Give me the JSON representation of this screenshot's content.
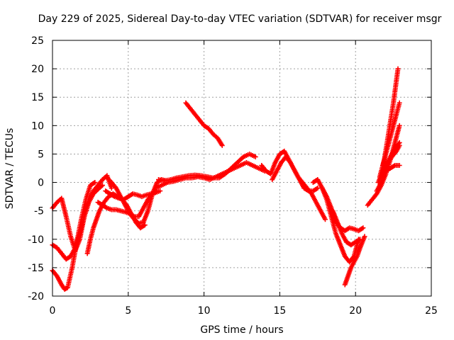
{
  "chart_data": {
    "type": "scatter",
    "title": "Day 229 of 2025, Sidereal Day-to-day VTEC variation (SDTVAR) for receiver msgr",
    "xlabel": "GPS time / hours",
    "ylabel": "SDTVAR / TECUs",
    "xlim": [
      0,
      25
    ],
    "ylim": [
      -20,
      25
    ],
    "xticks": [
      0,
      5,
      10,
      15,
      20,
      25
    ],
    "yticks": [
      -20,
      -15,
      -10,
      -5,
      0,
      5,
      10,
      15,
      20,
      25
    ],
    "grid": true,
    "marker": "plus",
    "color": "#ff0000",
    "series": [
      {
        "x": [
          0.0,
          0.3,
          0.6,
          0.9,
          1.2,
          1.5,
          1.8,
          2.1,
          2.4,
          2.7,
          3.0,
          3.3,
          3.6,
          3.9
        ],
        "y": [
          -4.5,
          -3.5,
          -2.8,
          -6.0,
          -9.5,
          -12.0,
          -10.0,
          -6.0,
          -3.0,
          -1.5,
          -0.5,
          0.5,
          1.2,
          -1.0
        ]
      },
      {
        "x": [
          0.0,
          0.3,
          0.6,
          0.9,
          1.2,
          1.5,
          1.8,
          2.1,
          2.4,
          2.7,
          3.0,
          3.3
        ],
        "y": [
          -11.0,
          -11.5,
          -12.5,
          -13.5,
          -13.0,
          -11.5,
          -9.0,
          -6.0,
          -3.5,
          -2.0,
          -1.2,
          -0.5
        ]
      },
      {
        "x": [
          0.0,
          0.3,
          0.6,
          0.8,
          1.0,
          1.3,
          1.6,
          1.9,
          2.2,
          2.5,
          2.8
        ],
        "y": [
          -15.5,
          -16.5,
          -18.0,
          -18.8,
          -18.5,
          -15.0,
          -10.5,
          -6.5,
          -3.0,
          -0.5,
          0.0
        ]
      },
      {
        "x": [
          2.3,
          2.5,
          2.7,
          2.9,
          3.1,
          3.4,
          3.7,
          4.0,
          4.3,
          4.6,
          4.9,
          5.2,
          5.5,
          5.8,
          6.1
        ],
        "y": [
          -12.5,
          -10.0,
          -8.0,
          -6.5,
          -5.0,
          -3.5,
          -2.5,
          -2.0,
          -2.5,
          -3.0,
          -4.0,
          -5.5,
          -7.0,
          -8.0,
          -7.5
        ]
      },
      {
        "x": [
          3.0,
          3.3,
          3.6,
          3.9,
          4.2,
          4.5,
          4.8,
          5.1,
          5.4,
          5.7,
          6.0,
          6.3,
          6.6,
          6.9
        ],
        "y": [
          -3.5,
          -4.0,
          -4.5,
          -4.8,
          -4.8,
          -5.0,
          -5.2,
          -5.5,
          -6.0,
          -6.0,
          -4.5,
          -3.0,
          -2.0,
          -1.5
        ]
      },
      {
        "x": [
          3.5,
          3.8,
          4.1,
          4.4,
          4.7,
          5.0,
          5.3,
          5.6,
          5.9,
          6.2,
          6.5,
          6.8,
          7.1
        ],
        "y": [
          -1.5,
          -2.0,
          -2.5,
          -2.8,
          -3.0,
          -2.5,
          -2.0,
          -2.2,
          -2.5,
          -2.2,
          -2.0,
          -1.8,
          -1.5
        ]
      },
      {
        "x": [
          3.6,
          3.9,
          4.2,
          4.5,
          4.8,
          5.1,
          5.4,
          5.7,
          6.0,
          6.3,
          6.6,
          6.9,
          7.2,
          7.5
        ],
        "y": [
          0.8,
          0.0,
          -1.0,
          -2.5,
          -4.0,
          -5.5,
          -6.5,
          -7.2,
          -7.0,
          -5.0,
          -2.0,
          0.0,
          0.5,
          0.3
        ]
      },
      {
        "x": [
          6.8,
          7.2,
          7.6,
          8.0,
          8.4,
          8.8,
          9.2,
          9.6,
          10.0,
          10.4,
          10.8,
          11.2,
          11.6,
          12.0,
          12.4,
          12.8,
          13.2,
          13.6,
          14.0
        ],
        "y": [
          -1.0,
          -0.5,
          0.0,
          0.2,
          0.5,
          0.8,
          0.8,
          1.0,
          0.8,
          0.5,
          1.0,
          1.5,
          2.0,
          2.5,
          3.0,
          3.5,
          3.0,
          2.5,
          2.0
        ]
      },
      {
        "x": [
          7.0,
          7.4,
          7.8,
          8.2,
          8.6,
          9.0,
          9.4,
          9.8,
          10.2,
          10.6,
          11.0,
          11.4,
          11.8,
          12.2,
          12.6,
          13.0,
          13.4
        ],
        "y": [
          0.5,
          0.3,
          0.5,
          0.8,
          1.0,
          1.2,
          1.3,
          1.2,
          1.0,
          0.8,
          0.8,
          1.5,
          2.5,
          3.5,
          4.5,
          5.0,
          4.5
        ]
      },
      {
        "x": [
          8.8,
          9.1,
          9.4,
          9.7,
          10.0,
          10.3,
          10.6,
          10.9,
          11.2
        ],
        "y": [
          14.0,
          13.0,
          12.0,
          11.0,
          10.0,
          9.5,
          8.5,
          7.8,
          6.5
        ]
      },
      {
        "x": [
          13.8,
          14.1,
          14.4,
          14.7,
          15.0,
          15.3,
          15.6,
          15.9,
          16.2,
          16.5,
          16.8,
          17.1,
          17.4,
          17.7,
          18.0
        ],
        "y": [
          3.0,
          2.0,
          1.5,
          3.5,
          5.0,
          5.5,
          4.0,
          2.5,
          1.0,
          0.0,
          -1.0,
          -2.0,
          -3.5,
          -5.0,
          -6.5
        ]
      },
      {
        "x": [
          14.5,
          14.8,
          15.1,
          15.4,
          15.7,
          16.0,
          16.3,
          16.6,
          16.9,
          17.2,
          17.5
        ],
        "y": [
          0.5,
          2.0,
          3.5,
          4.5,
          3.5,
          2.0,
          0.5,
          -1.0,
          -1.5,
          -1.5,
          -1.0
        ]
      },
      {
        "x": [
          17.2,
          17.5,
          17.8,
          18.1,
          18.4,
          18.7,
          19.0,
          19.3,
          19.6,
          19.9,
          20.2
        ],
        "y": [
          0.0,
          0.5,
          -1.0,
          -3.0,
          -6.0,
          -9.0,
          -11.0,
          -13.0,
          -14.0,
          -13.0,
          -10.0
        ]
      },
      {
        "x": [
          17.8,
          18.1,
          18.4,
          18.7,
          19.0,
          19.3,
          19.6,
          19.9,
          20.2,
          20.5
        ],
        "y": [
          -1.0,
          -2.5,
          -4.5,
          -7.0,
          -8.0,
          -8.5,
          -8.0,
          -8.2,
          -8.5,
          -8.0
        ]
      },
      {
        "x": [
          18.5,
          18.8,
          19.1,
          19.4,
          19.7,
          20.0,
          20.3
        ],
        "y": [
          -5.0,
          -7.0,
          -9.0,
          -10.5,
          -11.0,
          -10.5,
          -10.0
        ]
      },
      {
        "x": [
          19.3,
          19.5,
          19.7,
          19.9,
          20.1,
          20.3,
          20.6
        ],
        "y": [
          -18.0,
          -16.5,
          -15.0,
          -14.0,
          -13.0,
          -11.5,
          -9.5
        ]
      },
      {
        "x": [
          20.8,
          21.1,
          21.4,
          21.7,
          22.0,
          22.3,
          22.6,
          22.9
        ],
        "y": [
          -4.0,
          -3.0,
          -2.0,
          -0.5,
          1.5,
          4.0,
          7.0,
          10.0
        ]
      },
      {
        "x": [
          21.4,
          21.7,
          22.0,
          22.3,
          22.6,
          22.9
        ],
        "y": [
          -1.5,
          0.0,
          2.5,
          4.5,
          6.0,
          7.0
        ]
      },
      {
        "x": [
          21.5,
          21.8,
          22.1,
          22.4,
          22.7,
          22.9
        ],
        "y": [
          0.0,
          2.0,
          3.5,
          4.5,
          5.5,
          6.5
        ]
      },
      {
        "x": [
          21.6,
          21.9,
          22.2,
          22.5,
          22.8
        ],
        "y": [
          1.0,
          4.0,
          9.0,
          14.0,
          20.0
        ]
      },
      {
        "x": [
          21.8,
          22.1,
          22.4,
          22.7,
          22.9
        ],
        "y": [
          3.0,
          6.0,
          9.0,
          12.0,
          14.0
        ]
      },
      {
        "x": [
          22.0,
          22.3,
          22.6,
          22.9
        ],
        "y": [
          2.0,
          2.5,
          3.0,
          3.0
        ]
      }
    ]
  }
}
